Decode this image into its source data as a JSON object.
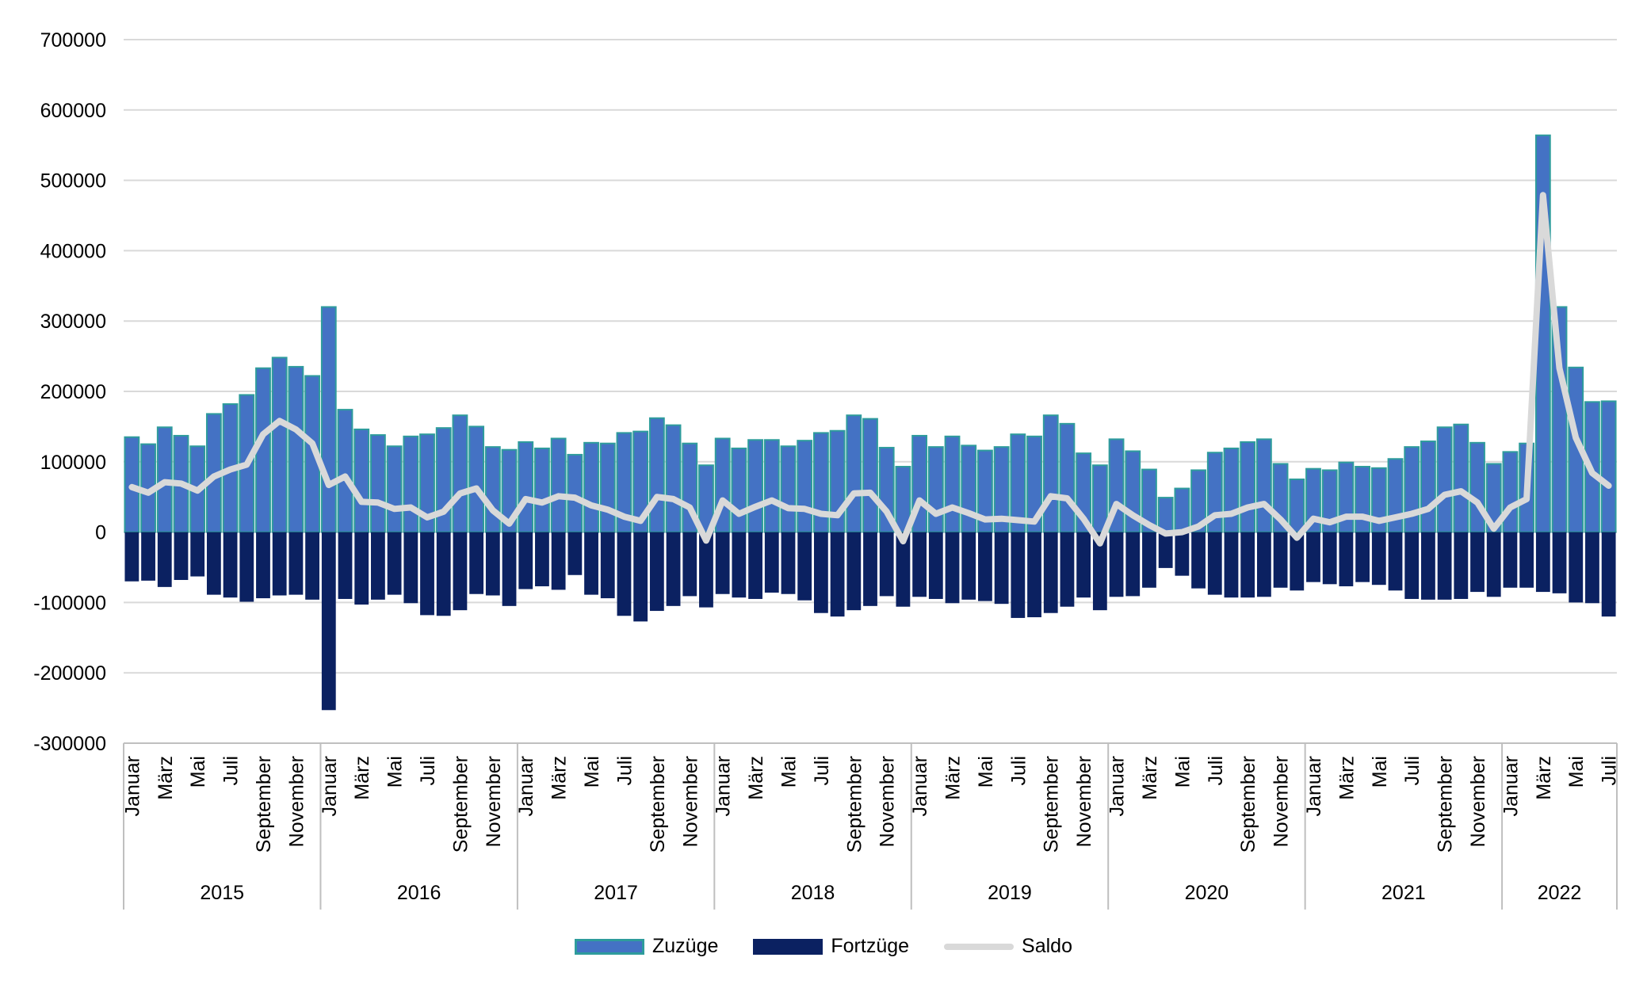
{
  "chart_data": {
    "type": "bar",
    "title": "",
    "xlabel": "",
    "ylabel": "",
    "ylim": [
      -300000,
      700000
    ],
    "yticks": [
      700000,
      600000,
      500000,
      400000,
      300000,
      200000,
      100000,
      0,
      -100000,
      -200000,
      -300000
    ],
    "grid": true,
    "legend_position": "bottom",
    "years": [
      "2015",
      "2016",
      "2017",
      "2018",
      "2019",
      "2020",
      "2021",
      "2022"
    ],
    "months_per_year": [
      12,
      12,
      12,
      12,
      12,
      12,
      12,
      7
    ],
    "month_tick_labels": [
      "Januar",
      "März",
      "Mai",
      "Juli",
      "September",
      "November"
    ],
    "month_tick_labels_2022": [
      "Januar",
      "März",
      "Mai",
      "Juli"
    ],
    "colors": {
      "zuzuege": "#4472C4",
      "zuzuege_border": "#2E9C9C",
      "fortzuege": "#0B2161",
      "saldo": "#D9D9D9",
      "grid": "#D9D9D9",
      "axis": "#BFBFBF"
    },
    "series": [
      {
        "name": "Zuzüge",
        "kind": "bar",
        "values": [
          135000,
          125000,
          149000,
          137000,
          122000,
          168000,
          182000,
          195000,
          233000,
          248000,
          235000,
          222000,
          320000,
          174000,
          146000,
          138000,
          122000,
          136000,
          139000,
          148000,
          166000,
          150000,
          121000,
          117000,
          128000,
          119000,
          133000,
          110000,
          127000,
          126000,
          141000,
          143000,
          162000,
          152000,
          126000,
          95000,
          133000,
          119000,
          131000,
          131000,
          122000,
          130000,
          141000,
          144000,
          166000,
          161000,
          120000,
          93000,
          137000,
          121000,
          136000,
          123000,
          116000,
          121000,
          139000,
          136000,
          166000,
          154000,
          112000,
          95000,
          132000,
          115000,
          89000,
          49000,
          62000,
          88000,
          113000,
          119000,
          128000,
          132000,
          97000,
          75000,
          90000,
          88000,
          99000,
          93000,
          91000,
          104000,
          121000,
          129000,
          149000,
          153000,
          127000,
          97000,
          114000,
          126000,
          564000,
          320000,
          234000,
          185000,
          186000
        ]
      },
      {
        "name": "Fortzüge",
        "kind": "bar",
        "values": [
          -70000,
          -69000,
          -78000,
          -68000,
          -63000,
          -89000,
          -93000,
          -99000,
          -94000,
          -90000,
          -89000,
          -96000,
          -253000,
          -95000,
          -103000,
          -96000,
          -89000,
          -101000,
          -118000,
          -119000,
          -111000,
          -88000,
          -90000,
          -105000,
          -81000,
          -77000,
          -82000,
          -61000,
          -89000,
          -94000,
          -119000,
          -127000,
          -112000,
          -105000,
          -91000,
          -107000,
          -88000,
          -93000,
          -95000,
          -86000,
          -88000,
          -97000,
          -115000,
          -120000,
          -111000,
          -105000,
          -91000,
          -106000,
          -92000,
          -95000,
          -101000,
          -96000,
          -98000,
          -102000,
          -122000,
          -121000,
          -115000,
          -106000,
          -93000,
          -111000,
          -92000,
          -91000,
          -79000,
          -51000,
          -62000,
          -80000,
          -89000,
          -93000,
          -93000,
          -92000,
          -79000,
          -83000,
          -71000,
          -74000,
          -77000,
          -71000,
          -75000,
          -83000,
          -95000,
          -96000,
          -96000,
          -95000,
          -85000,
          -92000,
          -79000,
          -79000,
          -85000,
          -87000,
          -100000,
          -101000,
          -120000
        ]
      },
      {
        "name": "Saldo",
        "kind": "line",
        "values": [
          64000,
          56000,
          71000,
          69000,
          59000,
          79000,
          89000,
          96000,
          139000,
          158000,
          146000,
          126000,
          67000,
          79000,
          43000,
          42000,
          33000,
          35000,
          21000,
          29000,
          55000,
          62000,
          31000,
          12000,
          47000,
          42000,
          51000,
          49000,
          38000,
          32000,
          22000,
          16000,
          50000,
          47000,
          35000,
          -12000,
          45000,
          26000,
          36000,
          45000,
          34000,
          33000,
          26000,
          24000,
          55000,
          56000,
          29000,
          -13000,
          45000,
          26000,
          35000,
          27000,
          18000,
          19000,
          17000,
          15000,
          51000,
          48000,
          19000,
          -16000,
          40000,
          24000,
          10000,
          -2000,
          0,
          8000,
          24000,
          26000,
          35000,
          40000,
          18000,
          -8000,
          19000,
          14000,
          22000,
          22000,
          16000,
          21000,
          26000,
          33000,
          53000,
          58000,
          42000,
          5000,
          35000,
          47000,
          479000,
          233000,
          134000,
          84000,
          66000
        ]
      }
    ]
  }
}
